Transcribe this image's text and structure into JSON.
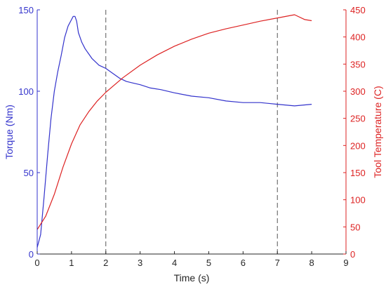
{
  "chart_data": {
    "type": "line",
    "xlabel": "Time (s)",
    "xlim": [
      0,
      9
    ],
    "xticks": [
      0,
      1,
      2,
      3,
      4,
      5,
      6,
      7,
      8,
      9
    ],
    "y_left": {
      "label": "Torque (Nm)",
      "lim": [
        0,
        150
      ],
      "ticks": [
        0,
        50,
        100,
        150
      ],
      "color": "#3333cc"
    },
    "y_right": {
      "label": "Tool Temperature (C)",
      "lim": [
        0,
        450
      ],
      "ticks": [
        0,
        50,
        100,
        150,
        200,
        250,
        300,
        350,
        400,
        450
      ],
      "color": "#dd2222"
    },
    "vlines": [
      2,
      7
    ],
    "series": [
      {
        "axis": "left",
        "color": "#3333cc",
        "x": [
          0,
          0.1,
          0.2,
          0.3,
          0.4,
          0.5,
          0.6,
          0.7,
          0.8,
          0.9,
          1.0,
          1.05,
          1.1,
          1.15,
          1.2,
          1.3,
          1.4,
          1.5,
          1.6,
          1.7,
          1.8,
          1.9,
          2.0,
          2.2,
          2.4,
          2.6,
          2.8,
          3.0,
          3.3,
          3.6,
          4.0,
          4.5,
          5.0,
          5.5,
          6.0,
          6.5,
          7.0,
          7.5,
          8.0
        ],
        "y": [
          4,
          12,
          35,
          60,
          83,
          100,
          112,
          122,
          133,
          140,
          144,
          146,
          146,
          143,
          136,
          130,
          126,
          123,
          120,
          118,
          116,
          115,
          114,
          111,
          108,
          106,
          105,
          104,
          102,
          101,
          99,
          97,
          96,
          94,
          93,
          93,
          92,
          91,
          92
        ]
      },
      {
        "axis": "right",
        "color": "#dd2222",
        "x": [
          0,
          0.25,
          0.5,
          0.75,
          1.0,
          1.25,
          1.5,
          1.75,
          2.0,
          2.5,
          3.0,
          3.5,
          4.0,
          4.5,
          5.0,
          5.5,
          6.0,
          6.5,
          7.0,
          7.5,
          7.8,
          8.0
        ],
        "y": [
          45,
          70,
          110,
          160,
          203,
          238,
          262,
          282,
          298,
          325,
          348,
          367,
          383,
          396,
          407,
          415,
          422,
          429,
          435,
          441,
          432,
          430
        ]
      }
    ]
  }
}
